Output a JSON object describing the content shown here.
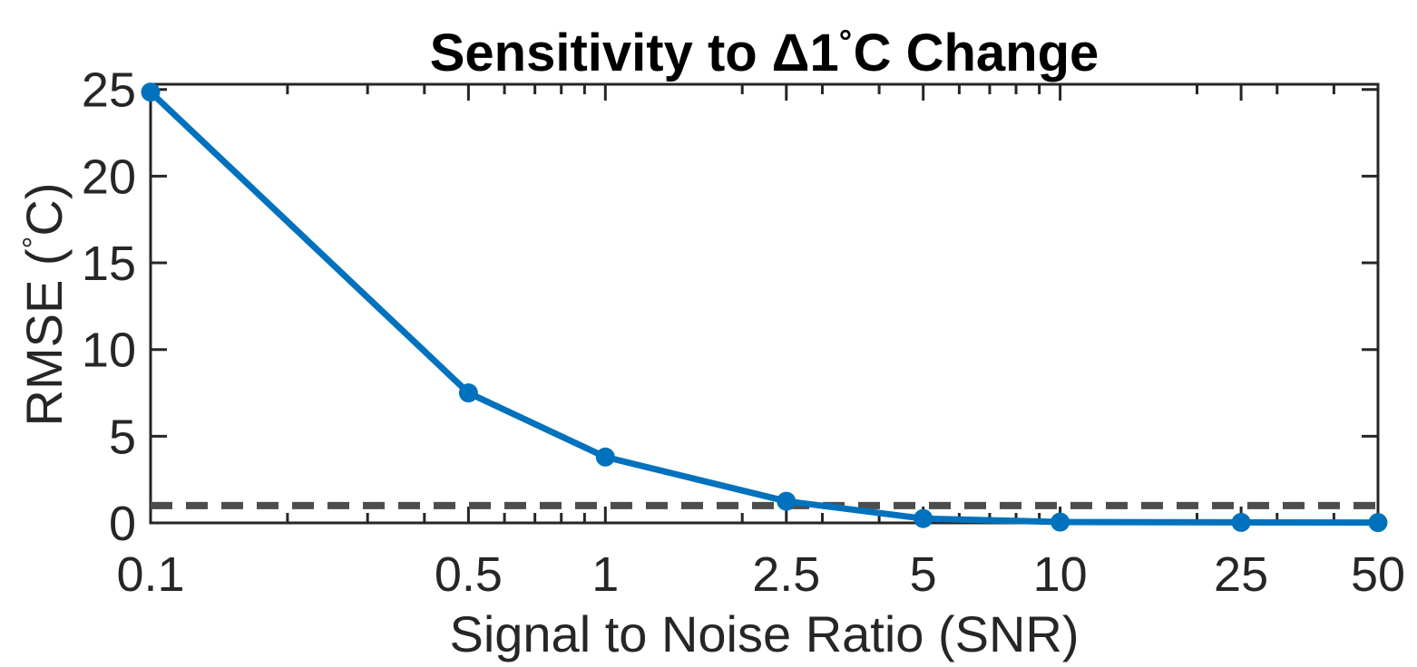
{
  "chart_data": {
    "type": "line",
    "title": "Sensitivity to Δ1°C Change",
    "title_parts": {
      "prefix": "Sensitivity to Δ1",
      "degree": "°",
      "suffix": "C Change"
    },
    "xlabel": "Signal to Noise Ratio (SNR)",
    "ylabel": "RMSE (°C)",
    "ylabel_parts": {
      "prefix": "RMSE (",
      "degree": "°",
      "suffix": "C)"
    },
    "x_scale": "log",
    "x": [
      0.1,
      0.5,
      1,
      2.5,
      5,
      10,
      25,
      50
    ],
    "series": [
      {
        "name": "RMSE",
        "values": [
          24.85,
          7.5,
          3.8,
          1.25,
          0.25,
          0.05,
          0.03,
          0.02
        ],
        "color": "#0072BD",
        "marker": "circle",
        "line_width": 7,
        "marker_radius": 10.5
      }
    ],
    "threshold_line": {
      "y": 1,
      "style": "dashed",
      "color": "#4D4D4D",
      "width": 8,
      "dash": "24 15"
    },
    "xticks": {
      "values": [
        0.1,
        0.5,
        1,
        2.5,
        5,
        10,
        25,
        50
      ],
      "labels": [
        "0.1",
        "0.5",
        "1",
        "2.5",
        "5",
        "10",
        "25",
        "50"
      ]
    },
    "x_minor_ticks": [
      0.2,
      0.3,
      0.4,
      0.6,
      0.7,
      0.8,
      0.9,
      2,
      3,
      4,
      6,
      7,
      8,
      9,
      20,
      30,
      40
    ],
    "yticks": {
      "values": [
        0,
        5,
        10,
        15,
        20,
        25
      ],
      "labels": [
        "0",
        "5",
        "10",
        "15",
        "20",
        "25"
      ]
    },
    "xlim": [
      0.1,
      50
    ],
    "ylim": [
      0,
      25.3
    ],
    "grid": false,
    "legend": null,
    "box": true,
    "colors": {
      "line": "#0072BD",
      "threshold": "#4D4D4D",
      "axis": "#262626",
      "text": "#262626",
      "background": "#FFFFFF"
    }
  }
}
